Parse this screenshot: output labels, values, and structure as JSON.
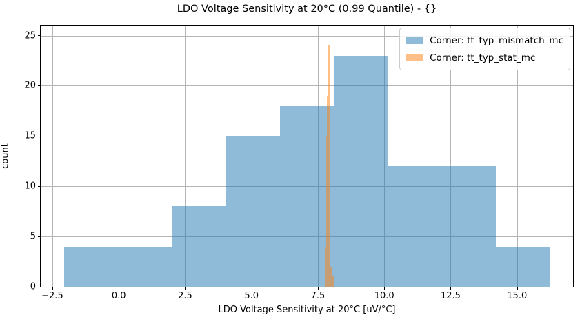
{
  "chart_data": {
    "type": "histogram",
    "title": "LDO Voltage Sensitivity at 20°C (0.99 Quantile) - {}",
    "xlabel": "LDO Voltage Sensitivity at 20°C [uV/°C]",
    "ylabel": "count",
    "xlim": [
      -2.94,
      17.11
    ],
    "ylim": [
      0,
      26
    ],
    "grid": true,
    "legend_position": "upper right",
    "grid_color": "#b5b5b5",
    "xticks": [
      -2.5,
      0.0,
      2.5,
      5.0,
      7.5,
      10.0,
      12.5,
      15.0
    ],
    "xtick_labels": [
      "−2.5",
      "0.0",
      "2.5",
      "5.0",
      "7.5",
      "10.0",
      "12.5",
      "15.0"
    ],
    "yticks": [
      0,
      5,
      10,
      15,
      20,
      25
    ],
    "ytick_labels": [
      "0",
      "5",
      "10",
      "15",
      "20",
      "25"
    ],
    "series": [
      {
        "name": "Corner: tt_typ_mismatch_mc",
        "color": "#1f77b4",
        "fill": "rgba(31,119,180,0.5)",
        "bin_edges": [
          -2.05,
          -0.02,
          2.01,
          4.04,
          6.07,
          8.1,
          10.13,
          12.16,
          14.19,
          16.22
        ],
        "counts": [
          4,
          4,
          8,
          15,
          18,
          23,
          12,
          12,
          4
        ]
      },
      {
        "name": "Corner: tt_typ_stat_mc",
        "color": "#ff7f0e",
        "fill": "rgba(255,127,14,0.5)",
        "bin_edges": [
          7.77,
          7.81,
          7.84,
          7.89,
          7.93,
          7.98,
          8.02,
          8.1
        ],
        "counts": [
          4,
          15,
          19,
          24,
          16,
          2,
          1
        ]
      }
    ]
  },
  "legend": {
    "items": [
      {
        "label": "Corner: tt_typ_mismatch_mc"
      },
      {
        "label": "Corner: tt_typ_stat_mc"
      }
    ]
  }
}
